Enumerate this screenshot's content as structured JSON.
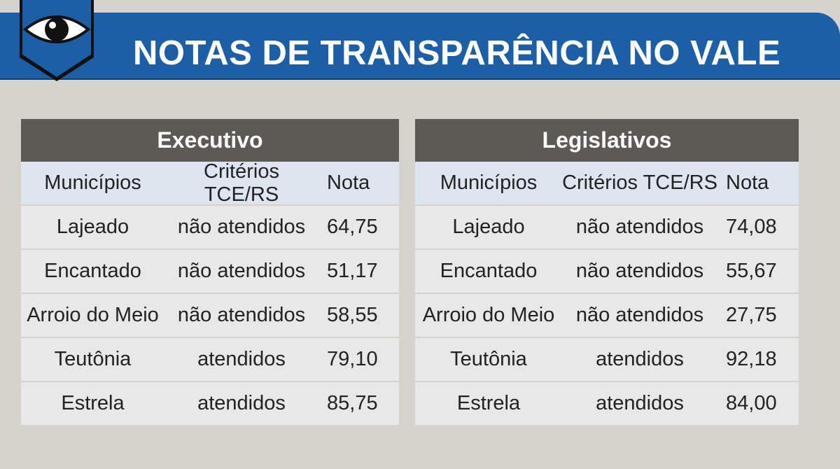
{
  "header": {
    "title": "NOTAS DE TRANSPARÊNCIA NO VALE",
    "icon": "eye-icon",
    "color": "#1c5fa6"
  },
  "chart_data": {
    "type": "table",
    "title": "NOTAS DE TRANSPARÊNCIA NO VALE",
    "columns": [
      "Municípios",
      "Critérios TCE/RS",
      "Nota"
    ],
    "tables": [
      {
        "name": "Executivo",
        "rows": [
          {
            "municipio": "Lajeado",
            "criterios": "não atendidos",
            "nota": "64,75"
          },
          {
            "municipio": "Encantado",
            "criterios": "não atendidos",
            "nota": "51,17"
          },
          {
            "municipio": "Arroio do Meio",
            "criterios": "não atendidos",
            "nota": "58,55"
          },
          {
            "municipio": "Teutônia",
            "criterios": "atendidos",
            "nota": "79,10"
          },
          {
            "municipio": "Estrela",
            "criterios": "atendidos",
            "nota": "85,75"
          }
        ]
      },
      {
        "name": "Legislativos",
        "rows": [
          {
            "municipio": "Lajeado",
            "criterios": "não atendidos",
            "nota": "74,08"
          },
          {
            "municipio": "Encantado",
            "criterios": "não atendidos",
            "nota": "55,67"
          },
          {
            "municipio": "Arroio do Meio",
            "criterios": "não atendidos",
            "nota": "27,75"
          },
          {
            "municipio": "Teutônia",
            "criterios": "atendidos",
            "nota": "92,18"
          },
          {
            "municipio": "Estrela",
            "criterios": "atendidos",
            "nota": "84,00"
          }
        ]
      }
    ]
  }
}
